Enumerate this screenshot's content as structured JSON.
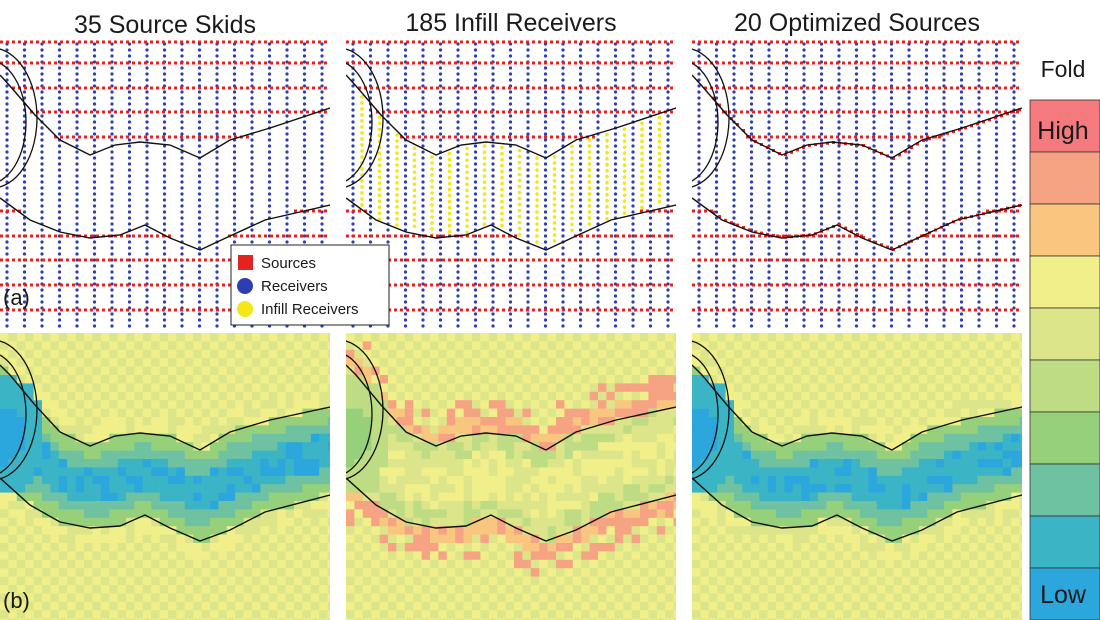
{
  "titles": [
    "35 Source Skids",
    "185 Infill Receivers",
    "20 Optimized Sources"
  ],
  "panel_labels": {
    "a": "(a)",
    "b": "(b)"
  },
  "legend": {
    "sources": "Sources",
    "receivers": "Receivers",
    "infill": "Infill Receivers"
  },
  "colorbar": {
    "title": "Fold",
    "high": "High",
    "low": "Low",
    "colors": [
      "#f47a7d",
      "#f6a384",
      "#f8c67f",
      "#f0ef8a",
      "#dde58a",
      "#bddc84",
      "#96d07b",
      "#6ec2a1",
      "#3bb5c6",
      "#2ba7dd"
    ]
  },
  "colors": {
    "source": "#e3231f",
    "receiver": "#2f3db3",
    "infill": "#f3e619",
    "boundary": "#111111"
  }
}
